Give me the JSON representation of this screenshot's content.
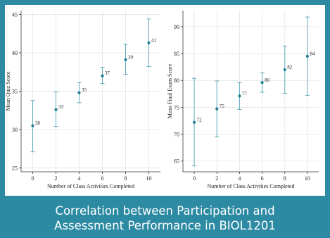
{
  "caption": {
    "line1": "Correlation between Participation and",
    "line2": "Assessment Performance in BIOL1201"
  },
  "colors": {
    "frame": "#2c8aa3",
    "marker": "#1f7f95",
    "errorbar": "#5fa8bb",
    "grid": "#e4e4e4",
    "axis": "#333333"
  },
  "chart_data": [
    {
      "type": "scatter",
      "title": "",
      "xlabel": "Number of Class Activities Completed",
      "ylabel": "Mean Quiz Score",
      "xlim": [
        -1,
        11
      ],
      "ylim": [
        24.5,
        45.5
      ],
      "xticks": [
        0,
        2,
        4,
        6,
        8,
        10
      ],
      "yticks": [
        25,
        30,
        35,
        40,
        45
      ],
      "grid": true,
      "series": [
        {
          "x": [
            0,
            2,
            4,
            6,
            8,
            10
          ],
          "y": [
            30.5,
            32.6,
            34.8,
            37.0,
            39.1,
            41.3
          ],
          "labels": [
            "30",
            "33",
            "35",
            "37",
            "39",
            "41"
          ],
          "err_low": [
            27.1,
            30.4,
            33.5,
            36.0,
            37.2,
            38.2
          ],
          "err_high": [
            33.8,
            34.9,
            36.1,
            38.1,
            41.1,
            44.4
          ]
        }
      ]
    },
    {
      "type": "scatter",
      "title": "",
      "xlabel": "Number of Class Activities Completed",
      "ylabel": "Mean Final Exam Score",
      "xlim": [
        -1,
        11
      ],
      "ylim": [
        63,
        93
      ],
      "xticks": [
        0,
        2,
        4,
        6,
        8,
        10
      ],
      "yticks": [
        65,
        70,
        75,
        80,
        85,
        90
      ],
      "grid": true,
      "series": [
        {
          "x": [
            0,
            2,
            4,
            6,
            8,
            10
          ],
          "y": [
            72.2,
            74.7,
            77.1,
            79.6,
            82.0,
            84.5
          ],
          "labels": [
            "72",
            "75",
            "77",
            "80",
            "82",
            "84"
          ],
          "err_low": [
            64.1,
            69.5,
            74.6,
            77.8,
            77.6,
            77.2
          ],
          "err_high": [
            80.4,
            79.9,
            79.6,
            81.4,
            86.4,
            91.8
          ]
        }
      ]
    }
  ]
}
